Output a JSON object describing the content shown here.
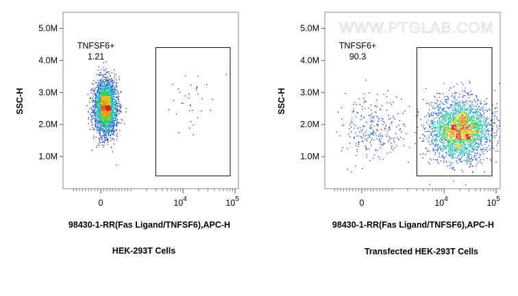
{
  "watermark": "WWW.PTGLAB.COM",
  "chart_data": [
    {
      "type": "scatter",
      "subtype": "flow-cytometry-density-dot-plot",
      "caption": "HEK-293T Cells",
      "xlabel": "98430-1-RR(Fas Ligand/TNFSF6),APC-H",
      "ylabel": "SSC-H",
      "x_scale": "biexponential",
      "x_ticks": [
        {
          "value": 0,
          "label": "0"
        },
        {
          "value": 10000,
          "label": "10",
          "exp": "4"
        },
        {
          "value": 100000,
          "label": "10",
          "exp": "5"
        }
      ],
      "ylim": [
        0,
        5500000
      ],
      "y_ticks": [
        {
          "value": 1000000,
          "label": "1.0M"
        },
        {
          "value": 2000000,
          "label": "2.0M"
        },
        {
          "value": 3000000,
          "label": "3.0M"
        },
        {
          "value": 4000000,
          "label": "4.0M"
        },
        {
          "value": 5000000,
          "label": "5.0M"
        }
      ],
      "gate": {
        "name": "TNFSF6+",
        "percent": "1.21",
        "x_range": [
          3000,
          400000
        ],
        "y_range": [
          400000,
          4400000
        ]
      },
      "populations": [
        {
          "x_center": 150,
          "x_spread": 220,
          "y_center": 2550000,
          "y_spread": 420000,
          "share": 0.988
        },
        {
          "x_center": 15000,
          "x_spread": 25000,
          "y_center": 2700000,
          "y_spread": 500000,
          "share": 0.012
        }
      ],
      "grid": false,
      "legend": "none"
    },
    {
      "type": "scatter",
      "subtype": "flow-cytometry-density-dot-plot",
      "caption": "Transfected HEK-293T Cells",
      "xlabel": "98430-1-RR(Fas Ligand/TNFSF6),APC-H",
      "ylabel": "SSC-H",
      "x_scale": "biexponential",
      "x_ticks": [
        {
          "value": 0,
          "label": "0"
        },
        {
          "value": 10000,
          "label": "10",
          "exp": "4"
        },
        {
          "value": 100000,
          "label": "10",
          "exp": "5"
        }
      ],
      "ylim": [
        0,
        5500000
      ],
      "y_ticks": [
        {
          "value": 1000000,
          "label": "1.0M"
        },
        {
          "value": 2000000,
          "label": "2.0M"
        },
        {
          "value": 3000000,
          "label": "3.0M"
        },
        {
          "value": 4000000,
          "label": "4.0M"
        },
        {
          "value": 5000000,
          "label": "5.0M"
        }
      ],
      "gate": {
        "name": "TNFSF6+",
        "percent": "90.3",
        "x_range": [
          3000,
          400000
        ],
        "y_range": [
          400000,
          4400000
        ]
      },
      "populations": [
        {
          "x_center": 20000,
          "x_spread": 38000,
          "y_center": 1850000,
          "y_spread": 480000,
          "share": 0.903
        },
        {
          "x_center": 300,
          "x_spread": 900,
          "y_center": 1900000,
          "y_spread": 450000,
          "share": 0.097
        }
      ],
      "grid": false,
      "legend": "none"
    }
  ]
}
